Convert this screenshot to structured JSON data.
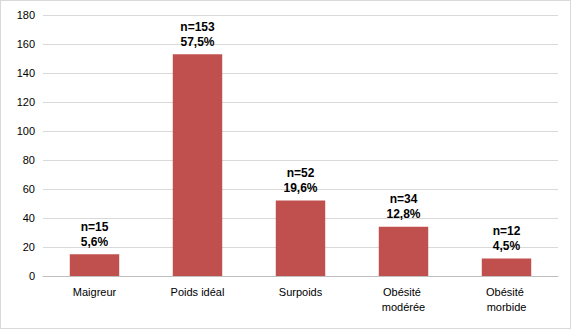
{
  "chart_data": {
    "type": "bar",
    "categories": [
      "Maigreur",
      "Poids idéal",
      "Surpoids",
      "Obésité modérée",
      "Obésité morbide"
    ],
    "values": [
      15,
      153,
      52,
      34,
      12
    ],
    "value_labels": [
      "n=15\n5,6%",
      "n=153\n57,5%",
      "n=52\n19,6%",
      "n=34\n12,8%",
      "n=12\n4,5%"
    ],
    "color": "#c0504d",
    "ylim": [
      0,
      180
    ],
    "yticks": [
      0,
      20,
      40,
      60,
      80,
      100,
      120,
      140,
      160,
      180
    ],
    "grid": true,
    "data_labels": true
  }
}
